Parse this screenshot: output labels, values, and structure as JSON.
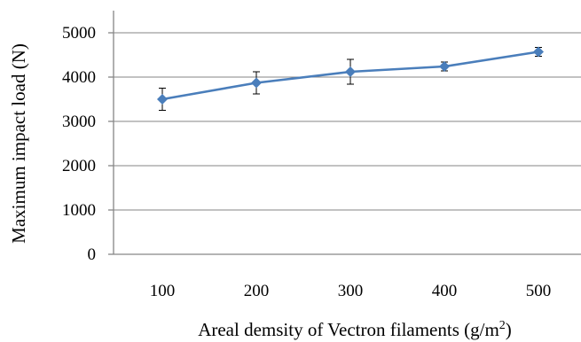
{
  "chart_data": {
    "type": "line",
    "title": "",
    "xlabel": "Areal demsity of Vectron filaments (g/m",
    "xlabel_sup": "2",
    "xlabel_suffix": ")",
    "ylabel": "Maximum impact load (N)",
    "categories": [
      "100",
      "200",
      "300",
      "400",
      "500"
    ],
    "series": [
      {
        "values": [
          3500,
          3870,
          4120,
          4240,
          4570
        ],
        "error": [
          250,
          250,
          280,
          100,
          100
        ],
        "color": "#4a7ebb"
      }
    ],
    "ylim": [
      0,
      5000
    ],
    "yticks": [
      0,
      1000,
      2000,
      3000,
      4000,
      5000
    ],
    "grid": true,
    "legend": "none"
  }
}
